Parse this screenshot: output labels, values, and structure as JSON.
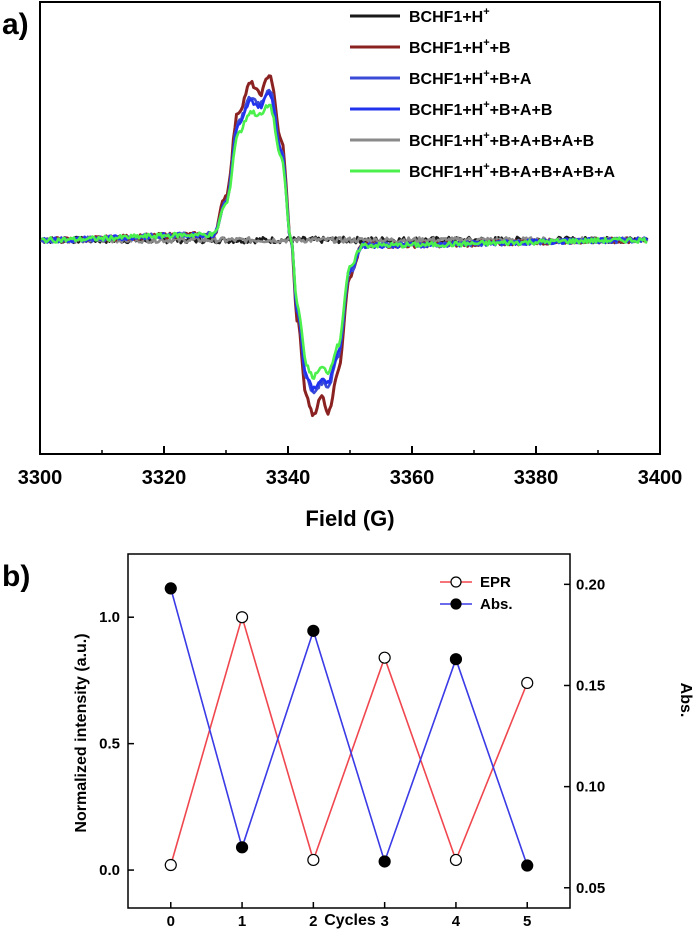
{
  "chart_data": [
    {
      "type": "line",
      "panel_label": "a)",
      "xlabel": "Field (G)",
      "ylabel": "",
      "xlim": [
        3300,
        3400
      ],
      "xticks": [
        3300,
        3320,
        3340,
        3360,
        3380,
        3400
      ],
      "legend_placement": "top-right",
      "grid": false,
      "series": [
        {
          "name": "BCHF1+H",
          "name_sup": "+",
          "name_suffix": "",
          "color": "#1a1a1a",
          "amplitude": 0,
          "x": [
            3300,
            3400
          ],
          "y": [
            0,
            0
          ]
        },
        {
          "name": "BCHF1+H",
          "name_sup": "+",
          "name_suffix": "+B",
          "color": "#8b2222",
          "amplitude": 1.0,
          "x": [
            3300,
            3328,
            3330,
            3332,
            3334,
            3335.5,
            3337,
            3339,
            3340.5,
            3341.5,
            3343,
            3344,
            3345.5,
            3346.5,
            3348,
            3350,
            3352,
            3400
          ],
          "y": [
            0,
            0.03,
            0.25,
            0.72,
            0.88,
            0.82,
            0.93,
            0.55,
            0.0,
            -0.45,
            -0.88,
            -0.98,
            -0.88,
            -0.97,
            -0.75,
            -0.2,
            -0.03,
            0
          ]
        },
        {
          "name": "BCHF1+H",
          "name_sup": "+",
          "name_suffix": "+B+A",
          "color": "#3b4bd8",
          "amplitude": 0.88,
          "x": [
            3300,
            3328,
            3330,
            3332,
            3334,
            3335.5,
            3337,
            3339,
            3340.5,
            3341.5,
            3343,
            3344,
            3345.5,
            3346.5,
            3348,
            3350,
            3352,
            3400
          ],
          "y": [
            0,
            0.03,
            0.22,
            0.66,
            0.8,
            0.77,
            0.85,
            0.5,
            0.0,
            -0.4,
            -0.78,
            -0.86,
            -0.8,
            -0.82,
            -0.66,
            -0.18,
            -0.03,
            0
          ]
        },
        {
          "name": "BCHF1+H",
          "name_sup": "+",
          "name_suffix": "+B+A+B",
          "color": "#2233ee",
          "amplitude": 0.86,
          "x": [
            3300,
            3328,
            3330,
            3332,
            3334,
            3335.5,
            3337,
            3339,
            3340.5,
            3341.5,
            3343,
            3344,
            3345.5,
            3346.5,
            3348,
            3350,
            3352,
            3400
          ],
          "y": [
            0,
            0.03,
            0.21,
            0.64,
            0.78,
            0.75,
            0.83,
            0.49,
            0.0,
            -0.39,
            -0.76,
            -0.84,
            -0.78,
            -0.8,
            -0.64,
            -0.17,
            -0.03,
            0
          ]
        },
        {
          "name": "BCHF1+H",
          "name_sup": "+",
          "name_suffix": "+B+A+B+A+B",
          "color": "#8a8a8a",
          "amplitude": 0,
          "x": [
            3300,
            3400
          ],
          "y": [
            0,
            0
          ]
        },
        {
          "name": "BCHF1+H",
          "name_sup": "+",
          "name_suffix": "+B+A+B+A+B+A",
          "color": "#4cf04c",
          "amplitude": 0.78,
          "x": [
            3300,
            3328,
            3330,
            3332,
            3334,
            3335.5,
            3337,
            3339,
            3340.5,
            3341.5,
            3343,
            3344,
            3345.5,
            3346.5,
            3348,
            3350,
            3352,
            3400
          ],
          "y": [
            0,
            0.03,
            0.2,
            0.6,
            0.72,
            0.7,
            0.76,
            0.45,
            0.0,
            -0.36,
            -0.7,
            -0.77,
            -0.72,
            -0.74,
            -0.6,
            -0.16,
            -0.03,
            0
          ]
        }
      ]
    },
    {
      "type": "line",
      "panel_label": "b)",
      "xlabel": "Cycles",
      "ylabel": "Normalized intensity (a.u.)",
      "y2label": "Abs.",
      "xlim": [
        -0.6,
        5.6
      ],
      "ylim": [
        -0.15,
        1.25
      ],
      "y2lim": [
        0.04,
        0.215
      ],
      "xticks": [
        0,
        1,
        2,
        3,
        4,
        5
      ],
      "yticks": [
        0.0,
        0.5,
        1.0
      ],
      "ytick_labels": [
        "0.0",
        "0.5",
        "1.0"
      ],
      "y2ticks": [
        0.05,
        0.1,
        0.15,
        0.2
      ],
      "y2tick_labels": [
        "0.05",
        "0.10",
        "0.15",
        "0.20"
      ],
      "legend_placement": "top-right",
      "grid": false,
      "x": [
        0,
        1,
        2,
        3,
        4,
        5
      ],
      "series": [
        {
          "name": "EPR",
          "axis": "left",
          "color": "#f0474f",
          "marker": "open-circle",
          "values": [
            0.02,
            1.0,
            0.04,
            0.84,
            0.04,
            0.74
          ]
        },
        {
          "name": "Abs.",
          "axis": "right",
          "color": "#3a3ae6",
          "marker": "filled-circle",
          "values": [
            0.198,
            0.07,
            0.177,
            0.063,
            0.163,
            0.061
          ]
        }
      ]
    }
  ]
}
